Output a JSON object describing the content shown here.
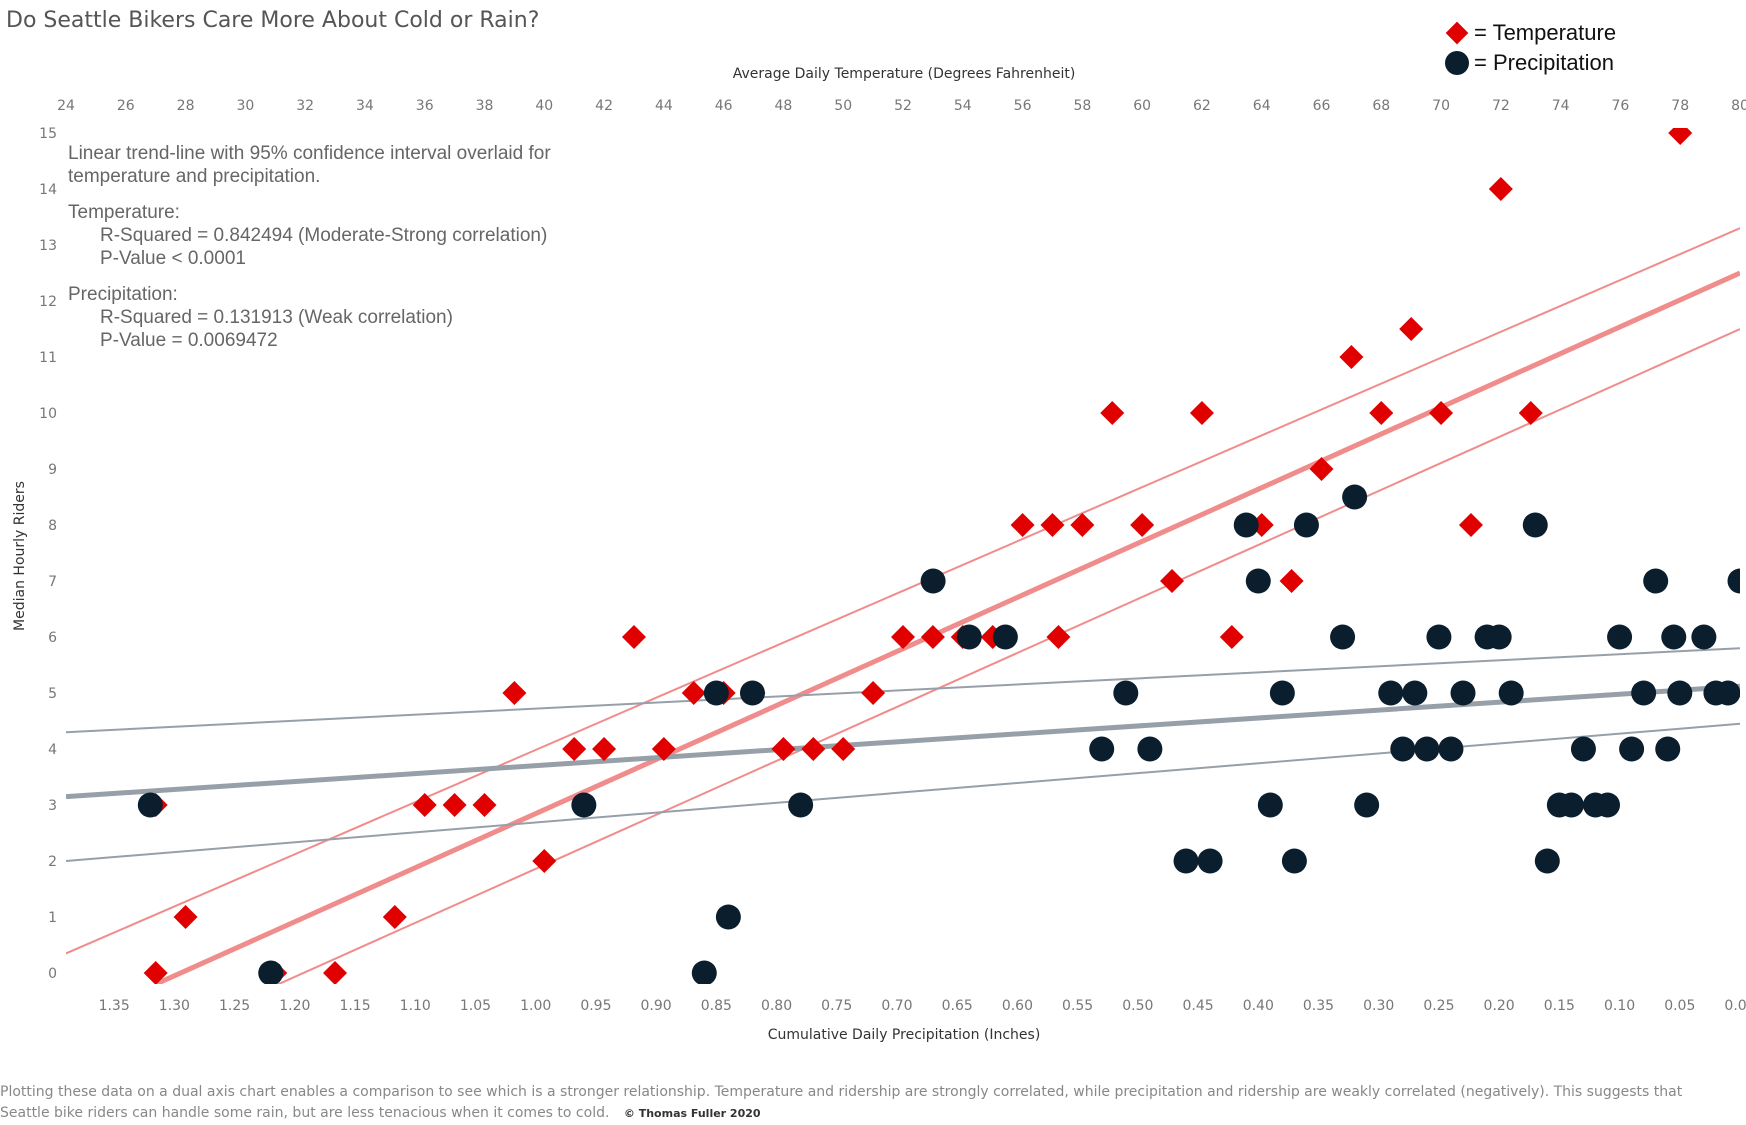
{
  "title": "Do Seattle Bikers Care More About Cold or Rain?",
  "legend": [
    {
      "symbol": "diamond",
      "label": "= Temperature",
      "color": "#e00000"
    },
    {
      "symbol": "circle",
      "label": "= Precipitation",
      "color": "#0b1e2d"
    }
  ],
  "annotation": {
    "line1": "Linear trend-line with 95% confidence interval overlaid for",
    "line2": "temperature and precipitation.",
    "temp_heading": "Temperature:",
    "temp_r2": "R-Squared = 0.842494 (Moderate-Strong correlation)",
    "temp_p": "P-Value < 0.0001",
    "precip_heading": "Precipitation:",
    "precip_r2": "R-Squared = 0.131913 (Weak correlation)",
    "precip_p": "P-Value = 0.0069472"
  },
  "footer": {
    "text": "Plotting these data on a dual axis chart enables a comparison to see which is a stronger relationship. Temperature and ridership are strongly correlated, while precipitation and ridership are weakly correlated (negatively). This suggests that Seattle bike riders can handle some rain, but are less tenacious when it comes to cold.",
    "copyright": "© Thomas Fuller 2020"
  },
  "colors": {
    "temperature": "#e00000",
    "temperature_trend": "#f08c8c",
    "precipitation": "#0b1e2d",
    "precipitation_trend": "#97a0a8"
  },
  "chart_data": {
    "type": "scatter",
    "title": "Do Seattle Bikers Care More About Cold or Rain?",
    "ylabel": "Median Hourly Riders",
    "ylim": [
      0,
      15
    ],
    "y_ticks": [
      "0",
      "1",
      "2",
      "3",
      "4",
      "5",
      "6",
      "7",
      "8",
      "9",
      "10",
      "11",
      "12",
      "13",
      "14",
      "15"
    ],
    "x_top": {
      "label": "Average Daily Temperature (Degrees Fahrenheit)",
      "range": [
        24,
        80
      ],
      "ticks": [
        "24",
        "26",
        "28",
        "30",
        "32",
        "34",
        "36",
        "38",
        "40",
        "42",
        "44",
        "46",
        "48",
        "50",
        "52",
        "54",
        "56",
        "58",
        "60",
        "62",
        "64",
        "66",
        "68",
        "70",
        "72",
        "74",
        "76",
        "78",
        "80"
      ]
    },
    "x_bottom": {
      "label": "Cumulative Daily Precipitation (Inches)",
      "range": [
        1.39,
        0.0
      ],
      "ticks": [
        "1.35",
        "1.30",
        "1.25",
        "1.20",
        "1.15",
        "1.10",
        "1.05",
        "1.00",
        "0.95",
        "0.90",
        "0.85",
        "0.80",
        "0.75",
        "0.70",
        "0.65",
        "0.60",
        "0.55",
        "0.50",
        "0.45",
        "0.40",
        "0.35",
        "0.30",
        "0.25",
        "0.20",
        "0.15",
        "0.10",
        "0.05",
        "0.00"
      ]
    },
    "grid": false,
    "legend_position": "top-right",
    "series": [
      {
        "name": "Temperature",
        "marker": "diamond",
        "x_axis": "top",
        "points": [
          [
            27,
            0
          ],
          [
            27,
            3
          ],
          [
            28,
            1
          ],
          [
            31,
            0
          ],
          [
            33,
            0
          ],
          [
            35,
            1
          ],
          [
            36,
            3
          ],
          [
            37,
            3
          ],
          [
            38,
            3
          ],
          [
            39,
            5
          ],
          [
            40,
            2
          ],
          [
            41,
            4
          ],
          [
            42,
            4
          ],
          [
            43,
            6
          ],
          [
            44,
            4
          ],
          [
            45,
            5
          ],
          [
            46,
            5
          ],
          [
            47,
            5
          ],
          [
            48,
            4
          ],
          [
            49,
            4
          ],
          [
            50,
            4
          ],
          [
            51,
            5
          ],
          [
            52,
            6
          ],
          [
            53,
            6
          ],
          [
            54,
            6
          ],
          [
            55,
            6
          ],
          [
            56,
            8
          ],
          [
            57,
            8
          ],
          [
            57.2,
            6
          ],
          [
            58,
            8
          ],
          [
            59,
            10
          ],
          [
            60,
            8
          ],
          [
            61,
            7
          ],
          [
            62,
            10
          ],
          [
            63,
            6
          ],
          [
            64,
            8
          ],
          [
            65,
            7
          ],
          [
            66,
            9
          ],
          [
            67,
            11
          ],
          [
            68,
            10
          ],
          [
            69,
            11.5
          ],
          [
            70,
            10
          ],
          [
            71,
            8
          ],
          [
            72,
            14
          ],
          [
            73,
            10
          ],
          [
            78,
            15
          ]
        ]
      },
      {
        "name": "Precipitation",
        "marker": "circle",
        "x_axis": "bottom",
        "points": [
          [
            1.32,
            3
          ],
          [
            1.22,
            0
          ],
          [
            0.96,
            3
          ],
          [
            0.86,
            0
          ],
          [
            0.85,
            5
          ],
          [
            0.84,
            1
          ],
          [
            0.82,
            5
          ],
          [
            0.78,
            3
          ],
          [
            0.67,
            7
          ],
          [
            0.64,
            6
          ],
          [
            0.61,
            6
          ],
          [
            0.53,
            4
          ],
          [
            0.51,
            5
          ],
          [
            0.49,
            4
          ],
          [
            0.46,
            2
          ],
          [
            0.44,
            2
          ],
          [
            0.41,
            8
          ],
          [
            0.4,
            7
          ],
          [
            0.39,
            3
          ],
          [
            0.38,
            5
          ],
          [
            0.37,
            2
          ],
          [
            0.36,
            8
          ],
          [
            0.33,
            6
          ],
          [
            0.32,
            8.5
          ],
          [
            0.31,
            3
          ],
          [
            0.29,
            5
          ],
          [
            0.28,
            4
          ],
          [
            0.27,
            5
          ],
          [
            0.26,
            4
          ],
          [
            0.25,
            6
          ],
          [
            0.24,
            4
          ],
          [
            0.23,
            5
          ],
          [
            0.21,
            6
          ],
          [
            0.2,
            6
          ],
          [
            0.19,
            5
          ],
          [
            0.17,
            8
          ],
          [
            0.16,
            2
          ],
          [
            0.15,
            3
          ],
          [
            0.14,
            3
          ],
          [
            0.13,
            4
          ],
          [
            0.12,
            3
          ],
          [
            0.11,
            3
          ],
          [
            0.1,
            6
          ],
          [
            0.09,
            4
          ],
          [
            0.08,
            5
          ],
          [
            0.07,
            7
          ],
          [
            0.06,
            4
          ],
          [
            0.055,
            6
          ],
          [
            0.05,
            5
          ],
          [
            0.03,
            6
          ],
          [
            0.02,
            5
          ],
          [
            0.01,
            5
          ],
          [
            0.0,
            7
          ]
        ]
      }
    ],
    "trendlines": [
      {
        "series": "Temperature",
        "fit": [
          [
            27,
            -0.2
          ],
          [
            80,
            12.5
          ]
        ],
        "ci_upper": [
          [
            24,
            0.35
          ],
          [
            80,
            13.3
          ]
        ],
        "ci_lower": [
          [
            24,
            -1.9
          ],
          [
            80,
            11.5
          ]
        ]
      },
      {
        "series": "Precipitation",
        "fit": [
          [
            1.39,
            3.15
          ],
          [
            0.0,
            5.12
          ]
        ],
        "ci_upper": [
          [
            1.39,
            4.3
          ],
          [
            0.0,
            5.8
          ]
        ],
        "ci_lower": [
          [
            1.39,
            2.0
          ],
          [
            0.0,
            4.45
          ]
        ]
      }
    ]
  }
}
